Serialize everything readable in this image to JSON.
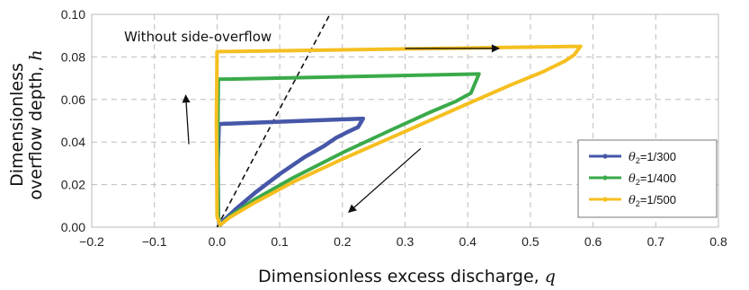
{
  "chart_data": {
    "type": "line",
    "xlabel": "Dimensionless excess discharge, ",
    "xlabel_var": "q",
    "ylabel_line1": "Dimensionless",
    "ylabel_line2": "overflow depth, ",
    "ylabel_var": "h",
    "xlim": [
      -0.2,
      0.8
    ],
    "ylim": [
      0,
      0.1
    ],
    "xticks": [
      -0.2,
      -0.1,
      0,
      0.1,
      0.2,
      0.3,
      0.4,
      0.5,
      0.6,
      0.7,
      0.8
    ],
    "xtick_labels": [
      "−0.2",
      "−0.1",
      "0.0",
      "0.1",
      "0.2",
      "0.3",
      "0.4",
      "0.5",
      "0.6",
      "0.7",
      "0.8"
    ],
    "yticks": [
      0,
      0.02,
      0.04,
      0.06,
      0.08,
      0.1
    ],
    "ytick_labels": [
      "0.00",
      "0.02",
      "0.04",
      "0.06",
      "0.08",
      "0.10"
    ],
    "grid": true,
    "legend_position": "bottom-right",
    "annotation_text": "Without side-overflow",
    "reference_line": {
      "style": "dashed",
      "color": "#111111",
      "points": [
        [
          0,
          0
        ],
        [
          0.18,
          0.1
        ]
      ]
    },
    "arrows": [
      {
        "from": [
          -0.045,
          0.039
        ],
        "to": [
          -0.05,
          0.062
        ]
      },
      {
        "from": [
          0.3,
          0.084
        ],
        "to": [
          0.45,
          0.084
        ]
      },
      {
        "from": [
          0.425,
          0.088
        ],
        "to": [
          0.455,
          0.088
        ]
      },
      {
        "from": [
          0.43,
          0.088
        ],
        "to": [
          0.455,
          0.088
        ]
      },
      {
        "from": [
          0.325,
          0.037
        ],
        "to": [
          0.21,
          0.007
        ]
      }
    ],
    "series": [
      {
        "name": "θ₂=1/300",
        "legend_main": "θ",
        "legend_sub": "2",
        "legend_rest": "=1/300",
        "color": "#4657a8",
        "width": 4.5,
        "points": [
          [
            0.005,
            0.001
          ],
          [
            0.01,
            0.003
          ],
          [
            0.03,
            0.0085
          ],
          [
            0.06,
            0.016
          ],
          [
            0.1,
            0.025
          ],
          [
            0.14,
            0.033
          ],
          [
            0.17,
            0.038
          ],
          [
            0.19,
            0.042
          ],
          [
            0.21,
            0.045
          ],
          [
            0.225,
            0.047
          ],
          [
            0.233,
            0.051
          ],
          [
            0.003,
            0.0485
          ],
          [
            0.001,
            0.03
          ],
          [
            0.002,
            0.004
          ],
          [
            0.005,
            0.001
          ]
        ]
      },
      {
        "name": "θ₂=1/400",
        "legend_main": "θ",
        "legend_sub": "2",
        "legend_rest": "=1/400",
        "color": "#3aaa4a",
        "width": 4,
        "points": [
          [
            0.005,
            0.001
          ],
          [
            0.02,
            0.005
          ],
          [
            0.06,
            0.013
          ],
          [
            0.12,
            0.023
          ],
          [
            0.2,
            0.035
          ],
          [
            0.28,
            0.046
          ],
          [
            0.34,
            0.054
          ],
          [
            0.38,
            0.059
          ],
          [
            0.405,
            0.063
          ],
          [
            0.418,
            0.072
          ],
          [
            0.002,
            0.0695
          ],
          [
            0.001,
            0.04
          ],
          [
            0.002,
            0.005
          ],
          [
            0.005,
            0.001
          ]
        ]
      },
      {
        "name": "θ₂=1/500",
        "legend_main": "θ",
        "legend_sub": "2",
        "legend_rest": "=1/500",
        "color": "#f5bf20",
        "width": 4,
        "points": [
          [
            0.005,
            0.001
          ],
          [
            0.02,
            0.0045
          ],
          [
            0.06,
            0.0115
          ],
          [
            0.12,
            0.021
          ],
          [
            0.2,
            0.032
          ],
          [
            0.3,
            0.045
          ],
          [
            0.4,
            0.058
          ],
          [
            0.47,
            0.067
          ],
          [
            0.52,
            0.073
          ],
          [
            0.555,
            0.078
          ],
          [
            0.57,
            0.081
          ],
          [
            0.58,
            0.085
          ],
          [
            0.0,
            0.0825
          ],
          [
            -0.001,
            0.05
          ],
          [
            0.0,
            0.005
          ],
          [
            0.005,
            0.001
          ]
        ]
      }
    ]
  }
}
